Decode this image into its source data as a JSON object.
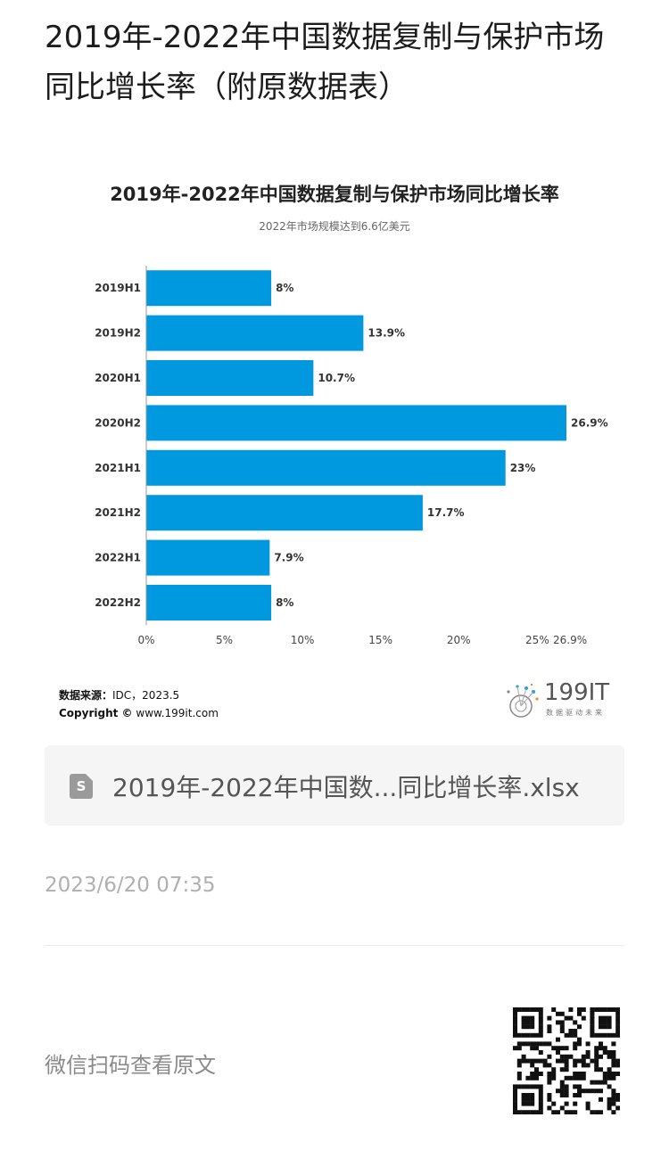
{
  "page": {
    "title": "2019年-2022年中国数据复制与保护市场同比增长率（附原数据表）"
  },
  "chart_data": {
    "type": "bar",
    "orientation": "horizontal",
    "title": "2019年-2022年中国数据复制与保护市场同比增长率",
    "subtitle": "2022年市场规模达到6.6亿美元",
    "categories": [
      "2019H1",
      "2019H2",
      "2020H1",
      "2020H2",
      "2021H1",
      "2021H2",
      "2022H1",
      "2022H2"
    ],
    "values": [
      8,
      13.9,
      10.7,
      26.9,
      23,
      17.7,
      7.9,
      8
    ],
    "value_labels": [
      "8%",
      "13.9%",
      "10.7%",
      "26.9%",
      "23%",
      "17.7%",
      "7.9%",
      "8%"
    ],
    "x_ticks": [
      "0%",
      "5%",
      "10%",
      "15%",
      "20%",
      "25%",
      "26.9%"
    ],
    "x_tick_values": [
      0,
      5,
      10,
      15,
      20,
      25,
      26.9
    ],
    "xlim": [
      0,
      26.9
    ],
    "grid": false,
    "bar_color": "#0099e0"
  },
  "source": {
    "label": "数据来源：",
    "value": "IDC，2023.5",
    "copyright_label": "Copyright ©",
    "copyright_value": "www.199it.com"
  },
  "logo": {
    "text": "199IT",
    "tagline": "数据驱动未来"
  },
  "attachment": {
    "icon": "spreadsheet-file-icon",
    "icon_letter": "S",
    "file_name": "2019年-2022年中国数...同比增长率.xlsx"
  },
  "timestamp": "2023/6/20 07:35",
  "footer": {
    "scan_text": "微信扫码查看原文",
    "qr_icon": "qr-code-icon"
  }
}
